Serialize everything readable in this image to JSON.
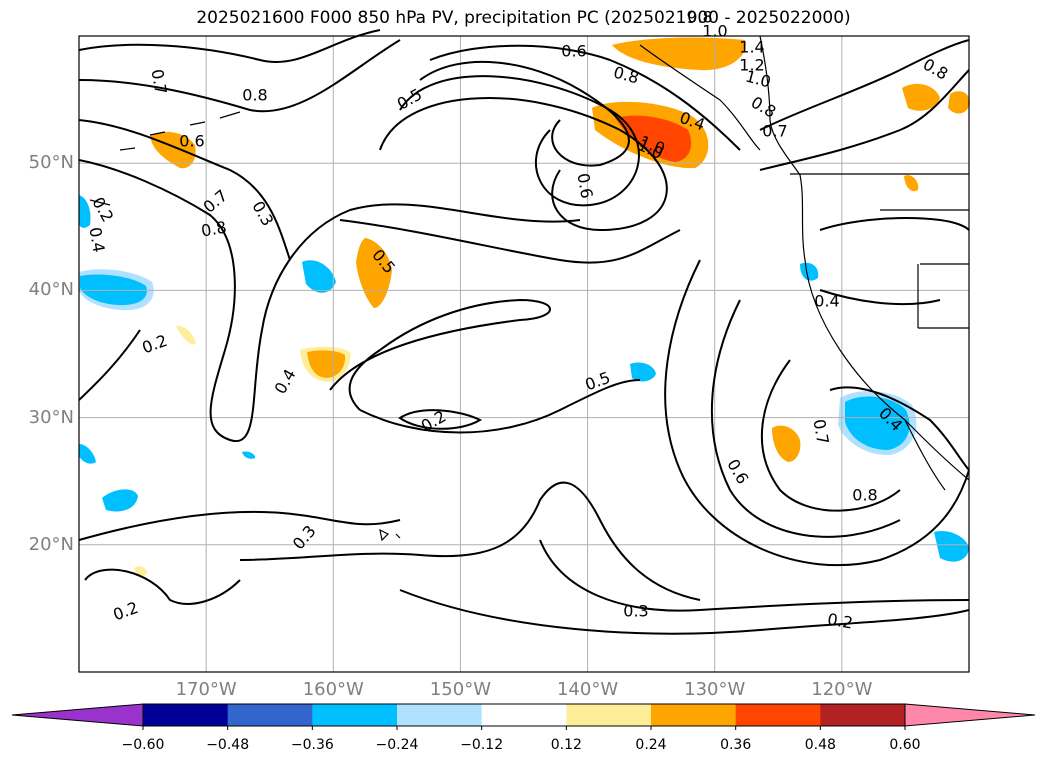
{
  "title": "2025021600 F000 850 hPa PV, precipitation PC (2025021900 - 2025022000)",
  "map": {
    "lon_range": [
      -180,
      -110
    ],
    "lat_range": [
      10,
      60
    ],
    "lon_ticks": [
      {
        "value": -170,
        "label": "170°W"
      },
      {
        "value": -160,
        "label": "160°W"
      },
      {
        "value": -150,
        "label": "150°W"
      },
      {
        "value": -140,
        "label": "140°W"
      },
      {
        "value": -130,
        "label": "130°W"
      },
      {
        "value": -120,
        "label": "120°W"
      }
    ],
    "lat_ticks": [
      {
        "value": 50,
        "label": "50°N"
      },
      {
        "value": 40,
        "label": "40°N"
      },
      {
        "value": 30,
        "label": "30°N"
      },
      {
        "value": 20,
        "label": "20°N"
      }
    ],
    "grid_color": "#b0b0b0",
    "contour_field": "850 hPa PV",
    "contour_labels": [
      "0.6",
      "0.8",
      "1.4",
      "1.2",
      "1.0",
      "0.8",
      "0.7",
      "1.0",
      "0.8",
      "0.4",
      "0.5",
      "0.8",
      "0.6",
      "1.0",
      "0.7",
      "0.8",
      "0.3",
      "0.2",
      "0.4",
      "0.5",
      "0.2",
      "0.2",
      "0.4",
      "0.5",
      "0.7",
      "0.8",
      "0.6",
      "0.4",
      "0.3",
      "0.3",
      "0.2",
      "0.2",
      "0.6",
      "1.0",
      "0.7",
      "0.4",
      "0.8"
    ],
    "shading_field": "precipitation PC"
  },
  "colorbar": {
    "ticks": [
      "−0.60",
      "−0.48",
      "−0.36",
      "−0.24",
      "−0.12",
      "0.12",
      "0.24",
      "0.36",
      "0.48",
      "0.60"
    ],
    "colors": [
      "#9933cc",
      "#000099",
      "#3366cc",
      "#00bfff",
      "#b0e2ff",
      "#ffffff",
      "#ffee99",
      "#ffa500",
      "#ff4500",
      "#b22222",
      "#ff88aa"
    ]
  }
}
